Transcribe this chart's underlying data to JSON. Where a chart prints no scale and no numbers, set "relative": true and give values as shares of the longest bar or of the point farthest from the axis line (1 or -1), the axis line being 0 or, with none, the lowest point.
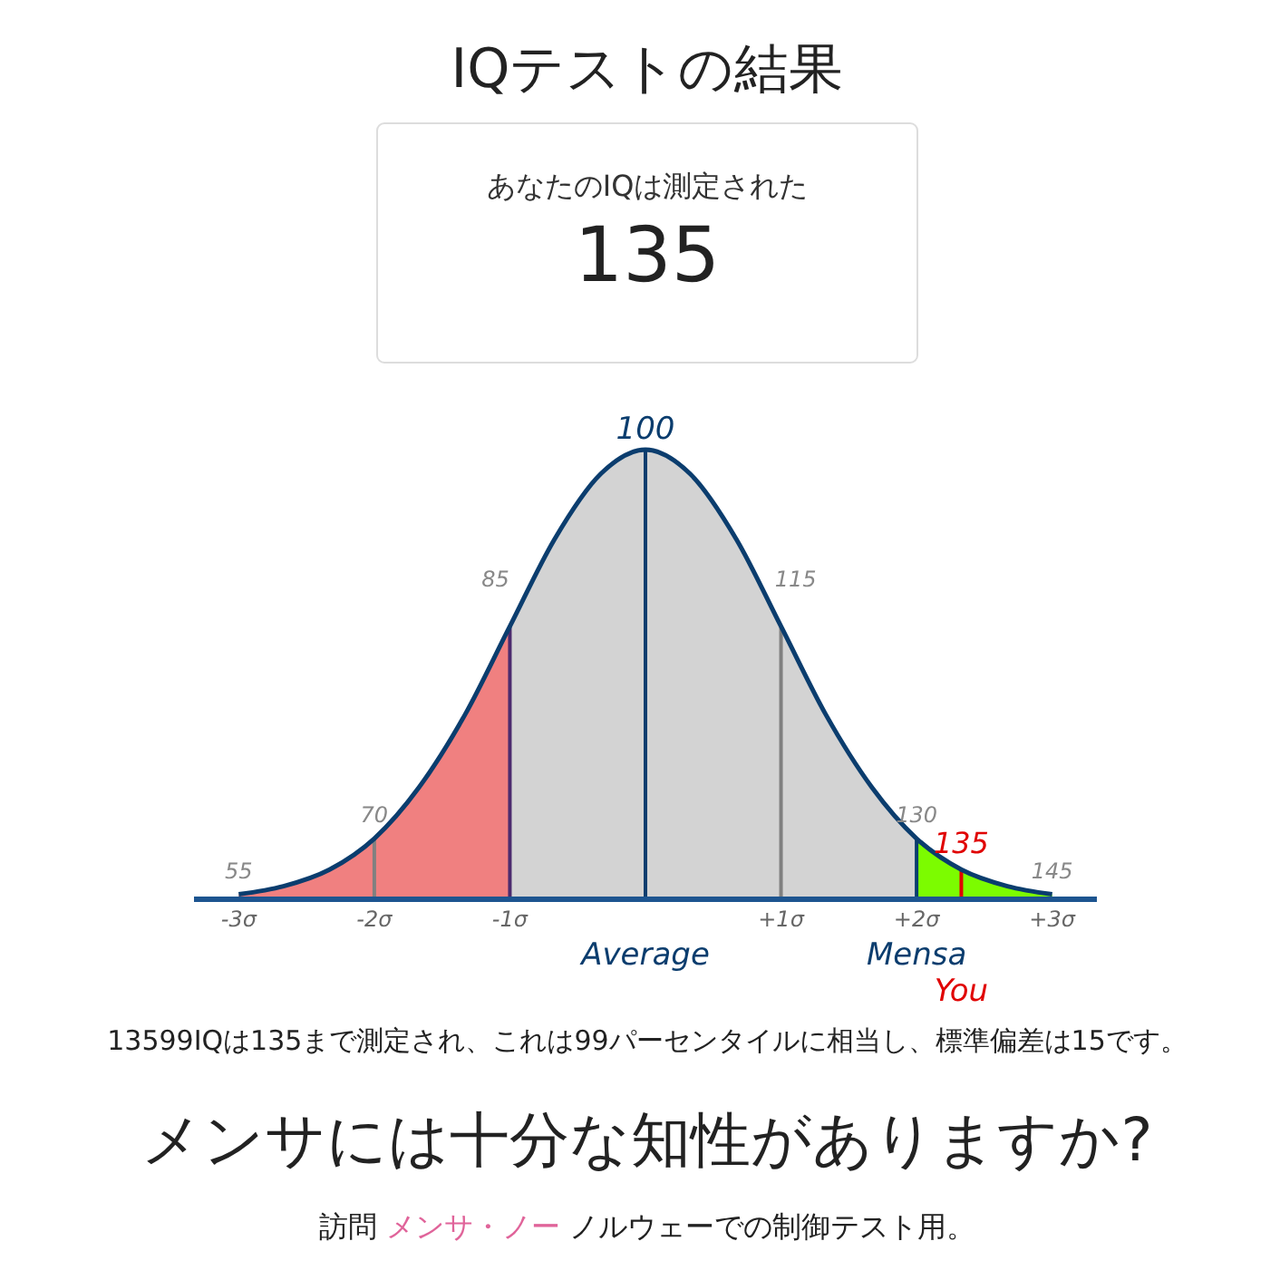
{
  "chart_data": {
    "type": "area",
    "title": "IQテストの結果",
    "subtitle": "あなたのIQは測定された",
    "relative": true,
    "xlim": [
      -3.33,
      3.33
    ],
    "xticks": [
      {
        "value": -3,
        "label": "-3σ"
      },
      {
        "value": -2,
        "label": "-2σ"
      },
      {
        "value": -1,
        "label": "-1σ"
      },
      {
        "value": 1,
        "label": "+1σ"
      },
      {
        "value": 2,
        "label": "+2σ"
      },
      {
        "value": 3,
        "label": "+3σ"
      }
    ],
    "series": [
      {
        "color": "#f08080",
        "x": [
          -3,
          -2.67,
          -2.33,
          -2,
          -1.67,
          -1.33,
          -1
        ],
        "values": [
          0.011,
          0.029,
          0.066,
          0.135,
          0.249,
          0.411,
          0.607
        ]
      },
      {
        "color": "#d3d3d3",
        "x": [
          -1,
          -0.67,
          -0.33,
          0,
          0.33,
          0.67,
          1,
          1.33,
          1.67,
          2
        ],
        "values": [
          0.607,
          0.801,
          0.946,
          1,
          0.946,
          0.801,
          0.607,
          0.411,
          0.249,
          0.135
        ]
      },
      {
        "color": "#7cfc00",
        "x": [
          2,
          2.33,
          2.67,
          3
        ],
        "values": [
          0.135,
          0.066,
          0.029,
          0.011
        ]
      },
      {
        "type": "line",
        "color": "#0b3d6e",
        "x": [
          -3,
          -2.67,
          -2.33,
          -2,
          -1.67,
          -1.33,
          -1,
          -0.67,
          -0.33,
          0,
          0.33,
          0.67,
          1,
          1.33,
          1.67,
          2,
          2.33,
          2.67,
          3
        ],
        "values": [
          0.011,
          0.029,
          0.066,
          0.135,
          0.249,
          0.411,
          0.607,
          0.801,
          0.946,
          1,
          0.946,
          0.801,
          0.607,
          0.411,
          0.249,
          0.135,
          0.066,
          0.029,
          0.011
        ]
      }
    ],
    "ref_lines": [
      {
        "axis": "x",
        "value": -2,
        "color": "#808080"
      },
      {
        "axis": "x",
        "value": -1,
        "color": "#4b2a6e"
      },
      {
        "axis": "x",
        "value": 0,
        "color": "#0b3d6e",
        "label": "Average"
      },
      {
        "axis": "x",
        "value": 1,
        "color": "#808080"
      },
      {
        "axis": "x",
        "value": 2,
        "color": "#0b3d6e",
        "label": "Mensa"
      },
      {
        "axis": "x",
        "value": 2.33,
        "color": "#e00000",
        "label": "You"
      }
    ],
    "annotations": [
      "135",
      {
        "text": "55",
        "x": -3,
        "y": 0.011
      },
      {
        "text": "70",
        "x": -2,
        "y": 0.135
      },
      {
        "text": "85",
        "x": -1,
        "y": 0.607
      },
      {
        "text": "100",
        "x": 0,
        "y": 1
      },
      {
        "text": "115",
        "x": 1,
        "y": 0.607
      },
      {
        "text": "130",
        "x": 2,
        "y": 0.135
      },
      {
        "text": "135",
        "x": 2.33,
        "y": 0.066
      },
      {
        "text": "145",
        "x": 3,
        "y": 0.011
      },
      "13599IQは135まで測定され、これは99パーセンタイルに相当し、標準偏差は15です。",
      "メンサには十分な知性がありますか?",
      "訪問 ",
      "メンサ・ノー",
      " ノルウェーでの制御テスト用。"
    ]
  }
}
